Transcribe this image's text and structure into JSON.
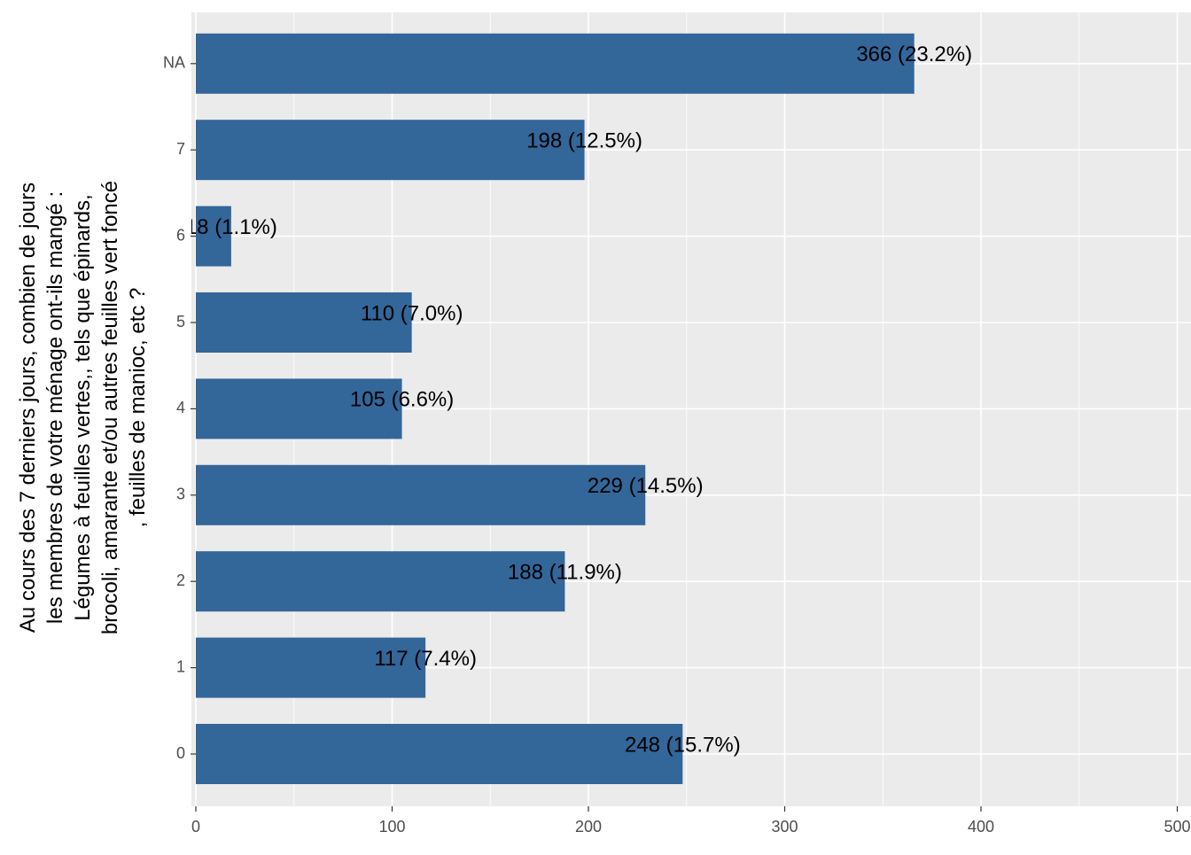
{
  "chart_data": {
    "type": "bar",
    "orientation": "horizontal",
    "y_label": [
      "Au cours des 7 derniers jours, combien de jours",
      "les membres de votre ménage ont-ils mangé :",
      "Légumes à feuilles vertes,, tels que épinards,",
      "brocoli, amarante et/ou autres feuilles vert foncé",
      ", feuilles de manioc, etc ?"
    ],
    "categories": [
      "0",
      "1",
      "2",
      "3",
      "4",
      "5",
      "6",
      "7",
      "NA"
    ],
    "values": [
      248,
      117,
      188,
      229,
      105,
      110,
      18,
      198,
      366
    ],
    "value_labels": [
      "248 (15.7%)",
      "117 (7.4%)",
      "188 (11.9%)",
      "229 (14.5%)",
      "105 (6.6%)",
      "110 (7.0%)",
      "18 (1.1%)",
      "198 (12.5%)",
      "366 (23.2%)"
    ],
    "color": "#336699",
    "xlim": [
      0,
      500
    ],
    "xticks": [
      0,
      100,
      200,
      300,
      400,
      500
    ],
    "grid": true
  }
}
